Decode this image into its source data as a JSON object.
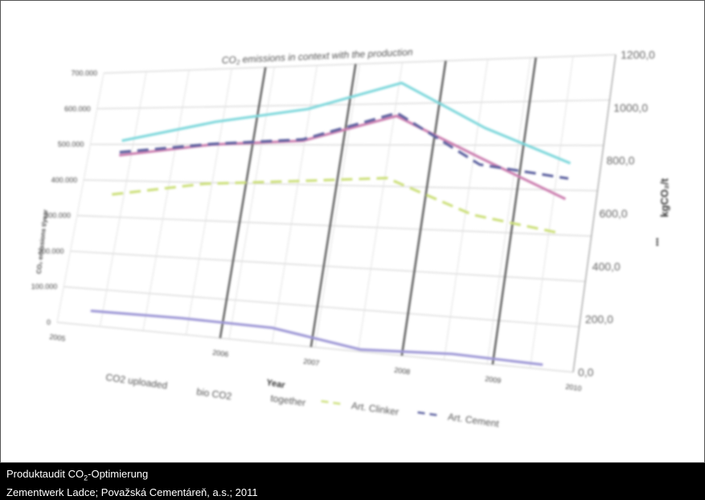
{
  "chart_data": {
    "type": "line",
    "title_prefix": "CO",
    "title_sub": "2",
    "title_suffix": " emissions in  context with the production",
    "xlabel": "Year",
    "ylabel_left": "CO₂ emissions t/year",
    "ylabel_right": "kgCO₂/t",
    "right_axis_marker": "•••",
    "x": [
      "2005",
      "2006",
      "2007",
      "2008",
      "2009",
      "2010"
    ],
    "left_ticks": [
      "0",
      "100.000",
      "200.000",
      "300.000",
      "400.000",
      "500.000",
      "600.000",
      "700.000"
    ],
    "right_ticks": [
      "0,0",
      "200,0",
      "400,0",
      "600,0",
      "800,0",
      "1000,0",
      "1200,0"
    ],
    "ylim_left": [
      0,
      700000
    ],
    "ylim_right": [
      0,
      1200
    ],
    "grid": true,
    "legend_position": "bottom",
    "series": [
      {
        "name": "CO2 uploaded",
        "axis": "left",
        "color": "#7fd8dc",
        "dash": false,
        "values": [
          510000,
          560000,
          590000,
          650000,
          540000,
          460000
        ]
      },
      {
        "name": "bio CO2",
        "axis": "left",
        "color": "#9e98d6",
        "dash": false,
        "values": [
          40000,
          42000,
          38000,
          5000,
          15000,
          10000
        ]
      },
      {
        "name": "together",
        "axis": "left",
        "color": "#cc7fb0",
        "dash": false,
        "values": [
          470000,
          500000,
          510000,
          570000,
          470000,
          380000
        ]
      },
      {
        "name": "Art. Clinker",
        "axis": "right",
        "color": "#cde07c",
        "dash": true,
        "values": [
          620,
          680,
          700,
          720,
          580,
          520
        ]
      },
      {
        "name": "Art. Cement",
        "axis": "right",
        "color": "#5a5f9e",
        "dash": true,
        "values": [
          820,
          860,
          880,
          990,
          780,
          730
        ]
      }
    ]
  },
  "caption": {
    "line1_prefix": "Produktaudit CO",
    "line1_sub": "2",
    "line1_suffix": "-Optimierung",
    "line2": "Zementwerk Ladce; Považská Cementáreň, a.s.; 2011"
  }
}
